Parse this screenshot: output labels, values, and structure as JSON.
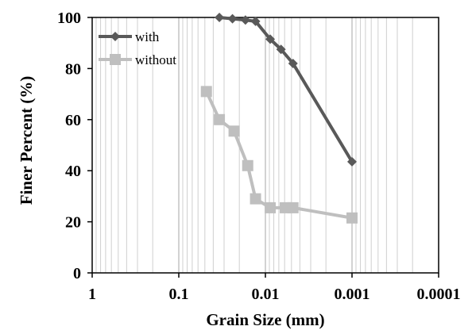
{
  "chart_data": {
    "type": "line",
    "xlabel": "Grain Size (mm)",
    "ylabel": "Finer Percent (%)",
    "x_scale": "log",
    "x_reversed": true,
    "xlim": [
      1,
      0.0001
    ],
    "ylim": [
      0,
      100
    ],
    "x_ticks": [
      1,
      0.1,
      0.01,
      0.001,
      0.0001
    ],
    "x_tick_labels": [
      "1",
      "0.1",
      "0.01",
      "0.001",
      "0.0001"
    ],
    "y_ticks": [
      0,
      20,
      40,
      60,
      80,
      100
    ],
    "y_tick_labels": [
      "0",
      "20",
      "40",
      "60",
      "80",
      "100"
    ],
    "grid": "vertical minor and major log gridlines",
    "legend_position": "top-left",
    "series": [
      {
        "name": "with",
        "color": "#595959",
        "marker": "diamond",
        "x": [
          0.034,
          0.024,
          0.017,
          0.013,
          0.0088,
          0.0066,
          0.0048,
          0.001
        ],
        "y": [
          100,
          99.5,
          99,
          98.5,
          91.5,
          87.5,
          82,
          43.5
        ]
      },
      {
        "name": "without",
        "color": "#bfbfbf",
        "marker": "square",
        "x": [
          0.048,
          0.034,
          0.023,
          0.016,
          0.013,
          0.0088,
          0.0059,
          0.0048,
          0.001
        ],
        "y": [
          71,
          60,
          55.5,
          42,
          29,
          25.5,
          25.5,
          25.5,
          21.5
        ]
      }
    ]
  }
}
